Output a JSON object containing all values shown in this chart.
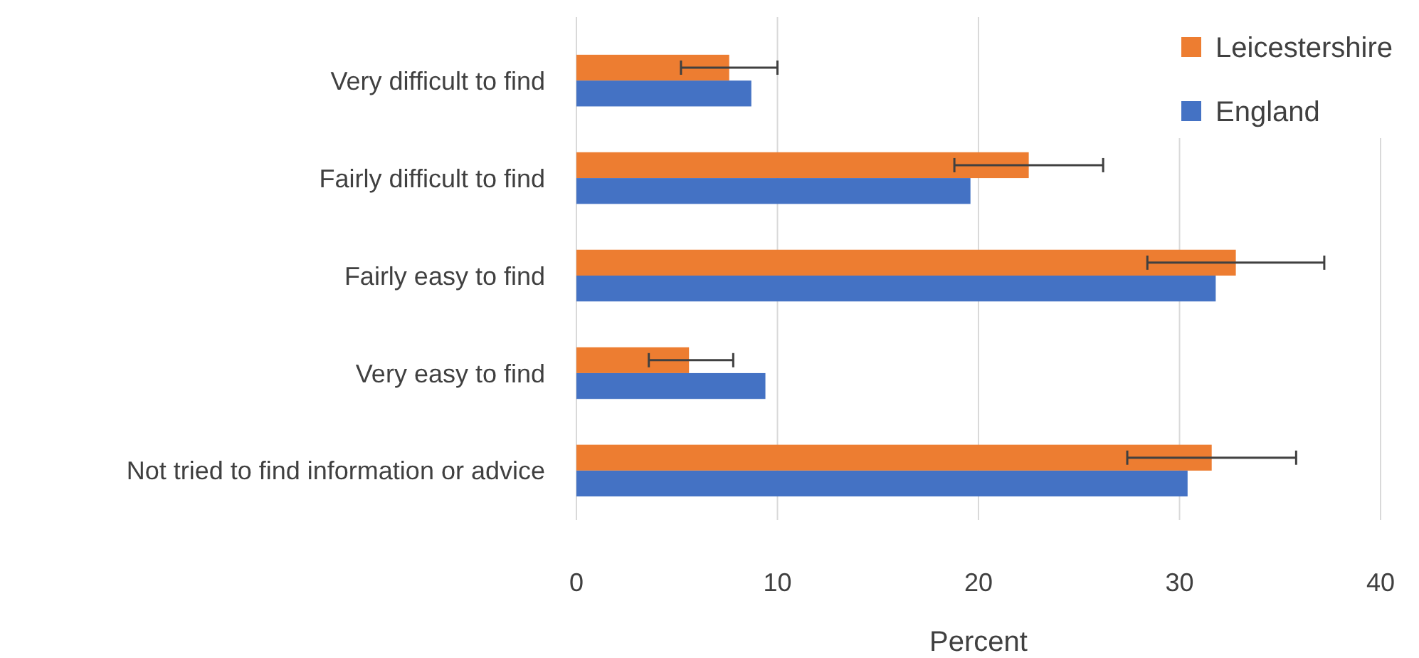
{
  "chart_data": {
    "type": "bar",
    "orientation": "horizontal",
    "xlabel": "Percent",
    "categories": [
      "Very difficult to find",
      "Fairly difficult to find",
      "Fairly easy to find",
      "Very easy to find",
      "Not tried to find information or advice"
    ],
    "series": [
      {
        "name": "Leicestershire",
        "color": "#ed7d31",
        "values": [
          7.6,
          22.5,
          32.8,
          5.6,
          31.6
        ],
        "errors": [
          [
            5.2,
            10.0
          ],
          [
            18.8,
            26.2
          ],
          [
            28.4,
            37.2
          ],
          [
            3.6,
            7.8
          ],
          [
            27.4,
            35.8
          ]
        ]
      },
      {
        "name": "England",
        "color": "#4472c4",
        "values": [
          8.7,
          19.6,
          31.8,
          9.4,
          30.4
        ]
      }
    ],
    "xlim": [
      0,
      40
    ],
    "xticks": [
      0,
      10,
      20,
      30,
      40
    ],
    "grid": "x",
    "legend": "top right"
  }
}
